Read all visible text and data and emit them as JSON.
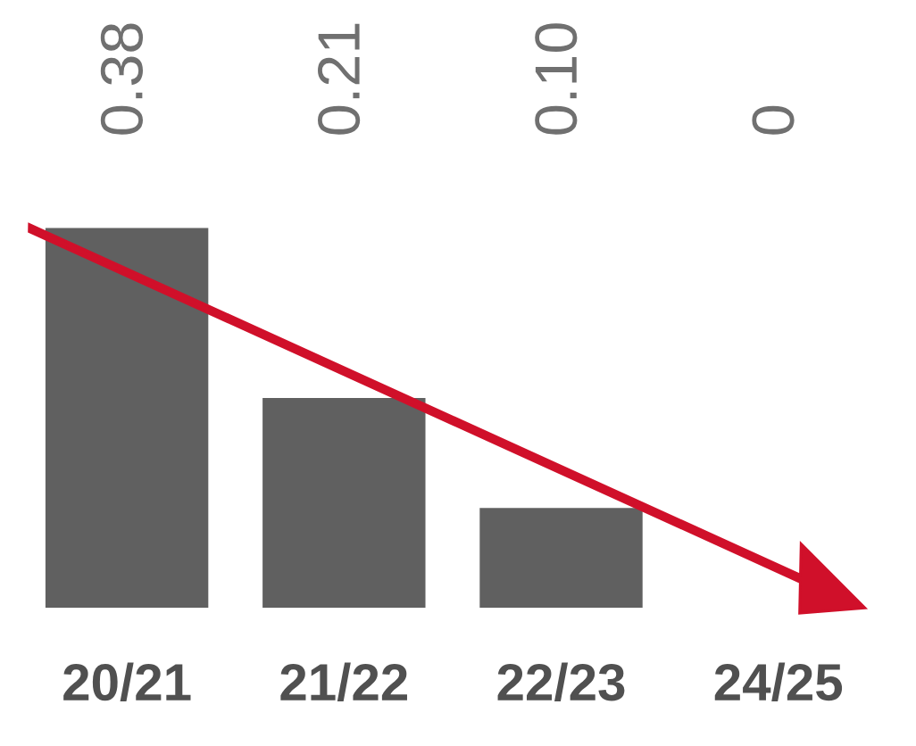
{
  "chart_data": {
    "type": "bar",
    "categories": [
      "20/21",
      "21/22",
      "22/23",
      "24/25"
    ],
    "values": [
      0.38,
      0.21,
      0.1,
      0
    ],
    "color": "#606060",
    "value_labels": [
      "0.38",
      "0.21",
      "0.10",
      "0"
    ],
    "grid": false,
    "legend": false
  }
}
